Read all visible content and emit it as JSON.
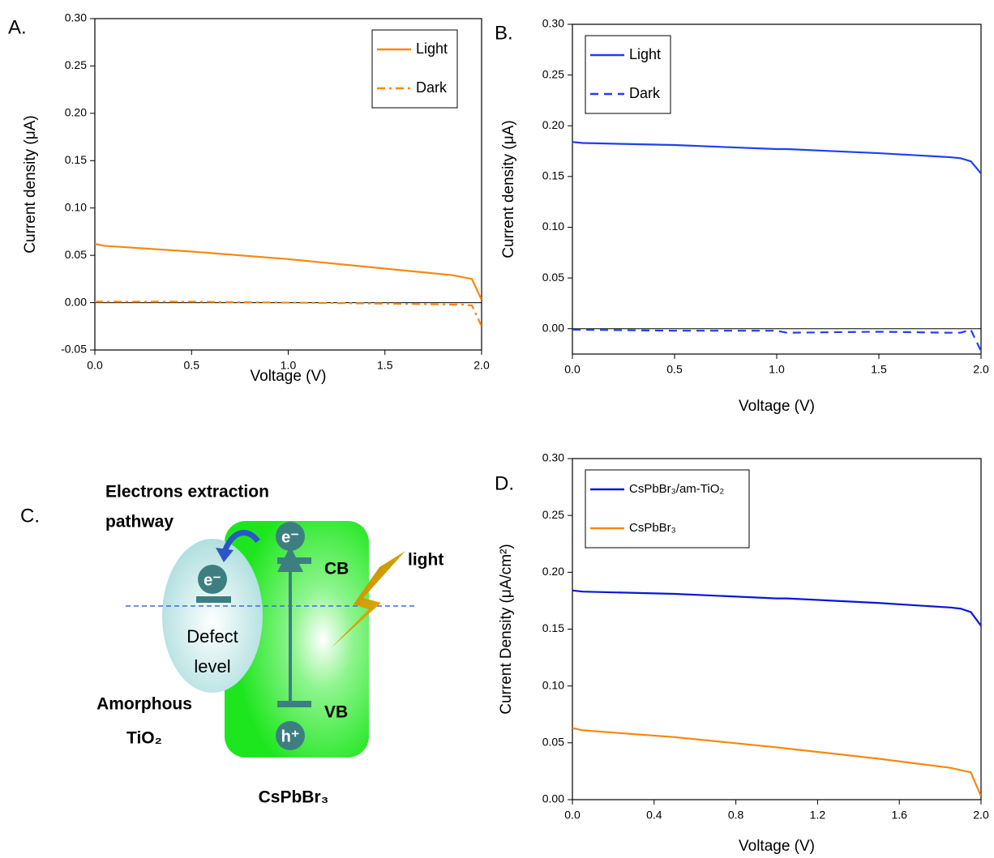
{
  "chart_data": [
    {
      "type": "line",
      "panel_label": "A.",
      "xlabel": "Voltage (V)",
      "ylabel": "Current density (μA)",
      "x": [
        0,
        0.05,
        0.5,
        1.0,
        1.05,
        1.5,
        1.85,
        1.9,
        1.95,
        2.0
      ],
      "series": [
        {
          "name": "Light",
          "color": "#f7880f",
          "style": "solid",
          "values": [
            0.062,
            0.06,
            0.054,
            0.046,
            0.045,
            0.036,
            0.029,
            0.027,
            0.025,
            0.003
          ]
        },
        {
          "name": "Dark",
          "color": "#f7880f",
          "style": "dashdot",
          "values": [
            0.001,
            0.001,
            0.001,
            0,
            0,
            -0.001,
            -0.002,
            -0.002,
            -0.003,
            -0.025
          ]
        }
      ],
      "xlim": [
        0,
        2
      ],
      "ylim": [
        -0.05,
        0.3
      ],
      "xticks": [
        {
          "value": 0,
          "label": "0.0"
        },
        0.5,
        {
          "value": 1,
          "label": "1.0"
        },
        1.5,
        {
          "value": 2,
          "label": "2.0"
        }
      ],
      "yticks": [
        -0.05,
        {
          "value": 0,
          "label": "0.00"
        },
        0.05,
        {
          "value": 0.1,
          "label": "0.10"
        },
        0.15,
        {
          "value": 0.2,
          "label": "0.20"
        },
        0.25,
        {
          "value": 0.3,
          "label": "0.30"
        }
      ],
      "legend": "upper right",
      "zero_line": true
    },
    {
      "type": "line",
      "panel_label": "B.",
      "xlabel": "Voltage (V)",
      "ylabel": "Current density (μA)",
      "x": [
        0,
        0.05,
        0.5,
        1.0,
        1.05,
        1.5,
        1.85,
        1.9,
        1.95,
        2.0
      ],
      "series": [
        {
          "name": "Light",
          "color": "#1f3ff0",
          "style": "solid",
          "values": [
            0.184,
            0.183,
            0.181,
            0.177,
            0.177,
            0.173,
            0.169,
            0.168,
            0.165,
            0.153
          ]
        },
        {
          "name": "Dark",
          "color": "#1f3ff0",
          "style": "dashed",
          "values": [
            -0.001,
            -0.001,
            -0.002,
            -0.002,
            -0.004,
            -0.003,
            -0.004,
            -0.004,
            -0.001,
            -0.022
          ]
        }
      ],
      "xlim": [
        0,
        2
      ],
      "ylim": [
        -0.025,
        0.3
      ],
      "xticks": [
        {
          "value": 0,
          "label": "0.0"
        },
        0.5,
        {
          "value": 1,
          "label": "1.0"
        },
        1.5,
        {
          "value": 2,
          "label": "2.0"
        }
      ],
      "yticks": [
        {
          "value": 0,
          "label": "0.00"
        },
        0.05,
        {
          "value": 0.1,
          "label": "0.10"
        },
        0.15,
        {
          "value": 0.2,
          "label": "0.20"
        },
        0.25,
        {
          "value": 0.3,
          "label": "0.30"
        }
      ],
      "legend": "upper left",
      "zero_line": true
    },
    {
      "type": "line",
      "panel_label": "D.",
      "xlabel": "Voltage (V)",
      "ylabel": "Current Density (μA/cm²)",
      "x": [
        0,
        0.05,
        0.5,
        1.0,
        1.05,
        1.5,
        1.85,
        1.9,
        1.95,
        2.0
      ],
      "series": [
        {
          "name": "CsPbBr₃/am-TiO₂",
          "color": "#0a16d8",
          "style": "solid",
          "values": [
            0.184,
            0.183,
            0.181,
            0.177,
            0.177,
            0.173,
            0.169,
            0.168,
            0.165,
            0.153
          ]
        },
        {
          "name": "CsPbBr₃",
          "color": "#f7880f",
          "style": "solid",
          "values": [
            0.063,
            0.061,
            0.055,
            0.046,
            0.045,
            0.036,
            0.028,
            0.026,
            0.024,
            0.003
          ]
        }
      ],
      "xlim": [
        0,
        2
      ],
      "ylim": [
        0,
        0.3
      ],
      "xticks": [
        {
          "value": 0,
          "label": "0.0"
        },
        0.4,
        0.8,
        1.2,
        1.6,
        {
          "value": 2,
          "label": "2.0"
        }
      ],
      "yticks": [
        {
          "value": 0,
          "label": "0.00"
        },
        0.05,
        {
          "value": 0.1,
          "label": "0.10"
        },
        0.15,
        {
          "value": 0.2,
          "label": "0.20"
        },
        0.25,
        {
          "value": 0.3,
          "label": "0.30"
        }
      ],
      "legend": "upper left",
      "zero_line": false
    }
  ],
  "diagram": {
    "panel_label": "C.",
    "title_lines": [
      "Electrons extraction",
      "pathway"
    ],
    "labels": {
      "electron_cb": "e⁻",
      "electron_defect": "e⁻",
      "hole": "h⁺",
      "cb": "CB",
      "vb": "VB",
      "light": "light",
      "defect_lines": [
        "Defect",
        "level"
      ],
      "amorphous_lines": [
        "Amorphous",
        "TiO₂"
      ],
      "perovskite": "CsPbBr₃"
    }
  }
}
